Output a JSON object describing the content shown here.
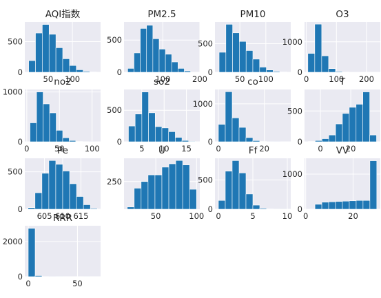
{
  "chart_data": [
    {
      "type": "bar",
      "title": "AQI指数",
      "bin_edges": [
        10,
        24,
        38,
        52,
        66,
        80,
        94,
        108,
        122,
        136,
        150
      ],
      "values": [
        190,
        640,
        780,
        620,
        400,
        220,
        110,
        40,
        15,
        5
      ],
      "xticks": [
        50,
        100
      ],
      "xlim": [
        2,
        158
      ],
      "ylim": [
        0,
        820
      ],
      "yticks": [
        0,
        500
      ]
    },
    {
      "type": "bar",
      "title": "PM2.5",
      "bin_edges": [
        5,
        22,
        39,
        56,
        73,
        90,
        107,
        124,
        141,
        158,
        175
      ],
      "values": [
        60,
        300,
        680,
        730,
        520,
        360,
        280,
        160,
        60,
        20
      ],
      "xticks": [
        100,
        200
      ],
      "xlim": [
        -5,
        200
      ],
      "ylim": [
        0,
        780
      ],
      "yticks": [
        0,
        500
      ]
    },
    {
      "type": "bar",
      "title": "PM10",
      "bin_edges": [
        10,
        23,
        36,
        49,
        62,
        75,
        88,
        101,
        114,
        127,
        140
      ],
      "values": [
        350,
        840,
        690,
        540,
        380,
        230,
        90,
        40,
        15,
        5
      ],
      "xticks": [
        50,
        100
      ],
      "xlim": [
        2,
        148
      ],
      "ylim": [
        0,
        880
      ],
      "yticks": [
        0,
        500
      ]
    },
    {
      "type": "bar",
      "title": "O3",
      "bin_edges": [
        5,
        28,
        51,
        74,
        97,
        120,
        143,
        166,
        189,
        212,
        235
      ],
      "values": [
        620,
        1580,
        540,
        120,
        25,
        8,
        3,
        1,
        0,
        0
      ],
      "xticks": [
        0,
        100,
        200
      ],
      "xlim": [
        -6,
        246
      ],
      "ylim": [
        0,
        1650
      ],
      "yticks": [
        0,
        1000
      ]
    },
    {
      "type": "bar",
      "title": "no2",
      "bin_edges": [
        5,
        15,
        25,
        35,
        45,
        55,
        65,
        75,
        85,
        95,
        105
      ],
      "values": [
        380,
        1000,
        760,
        580,
        230,
        80,
        25,
        8,
        3,
        1
      ],
      "xticks": [
        0,
        50,
        100
      ],
      "xlim": [
        -3,
        113
      ],
      "ylim": [
        0,
        1050
      ],
      "yticks": [
        0,
        1000
      ]
    },
    {
      "type": "bar",
      "title": "so2",
      "bin_edges": [
        2,
        3.5,
        5,
        6.5,
        8,
        9.5,
        11,
        12.5,
        14,
        15.5,
        17
      ],
      "values": [
        250,
        440,
        790,
        460,
        240,
        220,
        160,
        70,
        20,
        8
      ],
      "xticks": [
        5,
        10,
        15
      ],
      "xlim": [
        1,
        18
      ],
      "ylim": [
        0,
        830
      ],
      "yticks": [
        0,
        500
      ]
    },
    {
      "type": "bar",
      "title": "co",
      "bin_edges": [
        0,
        3,
        6,
        9,
        12,
        15,
        18,
        21,
        24,
        27,
        30
      ],
      "values": [
        460,
        1320,
        630,
        380,
        110,
        30,
        10,
        3,
        1,
        0
      ],
      "xticks": [
        0,
        20
      ],
      "xlim": [
        -1.5,
        31.5
      ],
      "ylim": [
        0,
        1380
      ],
      "yticks": [
        0,
        1000
      ]
    },
    {
      "type": "bar",
      "title": "T",
      "bin_edges": [
        -8,
        -3.5,
        1,
        5.5,
        10,
        14.5,
        19,
        23.5,
        28,
        32.5,
        37
      ],
      "values": [
        5,
        20,
        50,
        110,
        290,
        460,
        560,
        610,
        810,
        110
      ],
      "xticks": [
        0,
        20
      ],
      "xlim": [
        -10.5,
        39.5
      ],
      "ylim": [
        0,
        850
      ],
      "yticks": [
        0,
        500
      ]
    },
    {
      "type": "bar",
      "title": "Pe",
      "bin_edges": [
        600.5,
        602.4,
        604.3,
        606.2,
        608.1,
        610,
        611.9,
        613.8,
        615.7,
        617.6,
        619.5
      ],
      "values": [
        20,
        220,
        480,
        650,
        600,
        510,
        340,
        170,
        60,
        10
      ],
      "xticks": [
        605,
        610,
        615
      ],
      "xlim": [
        599.6,
        620.4
      ],
      "ylim": [
        0,
        680
      ],
      "yticks": [
        0,
        500
      ],
      "xtick_labels": [
        "605",
        "610",
        "615"
      ]
    },
    {
      "type": "bar",
      "title": "U",
      "bin_edges": [
        15,
        23.5,
        32,
        40.5,
        49,
        57.5,
        66,
        74.5,
        83,
        91.5,
        100
      ],
      "values": [
        20,
        190,
        250,
        310,
        310,
        380,
        410,
        440,
        400,
        180
      ],
      "xticks": [
        50,
        100
      ],
      "xlim": [
        11,
        104
      ],
      "ylim": [
        0,
        460
      ],
      "yticks": [
        250
      ],
      "ytick_labels": [
        "250"
      ]
    },
    {
      "type": "bar",
      "title": "Ff",
      "bin_edges": [
        0,
        1,
        2,
        3,
        4,
        5,
        6,
        7,
        8,
        9,
        10
      ],
      "values": [
        150,
        650,
        830,
        620,
        260,
        70,
        15,
        5,
        2,
        1
      ],
      "xticks": [
        0,
        5,
        10
      ],
      "xlim": [
        -0.5,
        10.5
      ],
      "ylim": [
        0,
        870
      ],
      "yticks": [
        0,
        500
      ]
    },
    {
      "type": "bar",
      "title": "VV",
      "bin_edges": [
        1,
        3.9,
        6.8,
        9.7,
        12.6,
        15.5,
        18.4,
        21.3,
        24.2,
        27.1,
        30
      ],
      "values": [
        0,
        140,
        200,
        210,
        220,
        230,
        240,
        250,
        250,
        1380
      ],
      "xticks": [
        0,
        20
      ],
      "xlim": [
        -0.5,
        31.5
      ],
      "ylim": [
        0,
        1450
      ],
      "yticks": [
        0,
        1000
      ]
    },
    {
      "type": "bar",
      "title": "RRR",
      "bin_edges": [
        0,
        7,
        14,
        21,
        28,
        35,
        42,
        49,
        56,
        63,
        70
      ],
      "values": [
        2750,
        60,
        8,
        3,
        1,
        0,
        0,
        0,
        1,
        0
      ],
      "xticks": [
        0,
        50
      ],
      "xlim": [
        -3.5,
        73.5
      ],
      "ylim": [
        0,
        2900
      ],
      "yticks": [
        0,
        2000
      ]
    }
  ]
}
